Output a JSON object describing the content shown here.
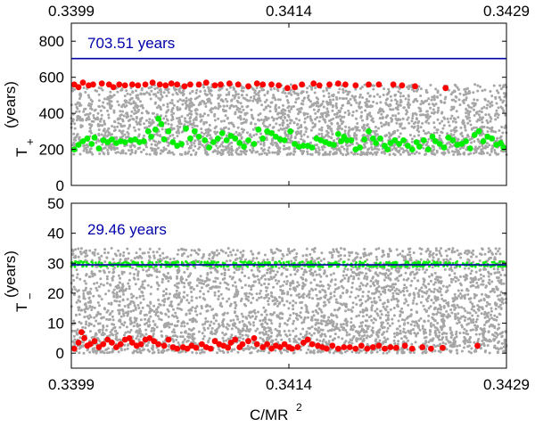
{
  "chart_data": [
    {
      "type": "scatter",
      "panel": "top",
      "title": "",
      "xlabel": "",
      "ylabel": "T",
      "ylabel_subscript": "+",
      "ylabel_unit": "(years)",
      "xlim": [
        0.3399,
        0.3429
      ],
      "ylim": [
        0,
        900
      ],
      "x_ticks_top": [
        "0.3399",
        "0.3414",
        "0.3429"
      ],
      "y_ticks": [
        0,
        200,
        400,
        600,
        800
      ],
      "reference_line": {
        "value": 703.51,
        "label": "703.51 years",
        "color": "#0000aa"
      },
      "series": [
        {
          "role": "background",
          "color": "#a6a6a6",
          "y_band": [
            170,
            560
          ]
        },
        {
          "role": "max",
          "color": "#ff0000",
          "points": [
            [
              0.33992,
              560
            ],
            [
              0.33995,
              545
            ],
            [
              0.33998,
              570
            ],
            [
              0.34002,
              555
            ],
            [
              0.34005,
              560
            ],
            [
              0.34011,
              565
            ],
            [
              0.34016,
              560
            ],
            [
              0.34019,
              545
            ],
            [
              0.34023,
              560
            ],
            [
              0.34027,
              555
            ],
            [
              0.34032,
              560
            ],
            [
              0.34036,
              555
            ],
            [
              0.34041,
              560
            ],
            [
              0.34046,
              570
            ],
            [
              0.34051,
              560
            ],
            [
              0.34055,
              555
            ],
            [
              0.34059,
              565
            ],
            [
              0.34063,
              560
            ],
            [
              0.34068,
              550
            ],
            [
              0.34072,
              560
            ],
            [
              0.34078,
              560
            ],
            [
              0.34083,
              570
            ],
            [
              0.34089,
              555
            ],
            [
              0.34093,
              560
            ],
            [
              0.34099,
              565
            ],
            [
              0.34105,
              560
            ],
            [
              0.34112,
              550
            ],
            [
              0.34118,
              565
            ],
            [
              0.34122,
              560
            ],
            [
              0.34128,
              560
            ],
            [
              0.34133,
              555
            ],
            [
              0.34139,
              540
            ],
            [
              0.34144,
              545
            ],
            [
              0.34149,
              560
            ],
            [
              0.34157,
              565
            ],
            [
              0.34161,
              555
            ],
            [
              0.34168,
              560
            ],
            [
              0.34174,
              565
            ],
            [
              0.34179,
              560
            ],
            [
              0.34186,
              555
            ],
            [
              0.34195,
              560
            ],
            [
              0.34202,
              560
            ],
            [
              0.34212,
              560
            ],
            [
              0.34218,
              555
            ],
            [
              0.34227,
              550
            ],
            [
              0.34248,
              540
            ]
          ]
        },
        {
          "role": "min",
          "color": "#00ee00",
          "points": [
            [
              0.33992,
              200
            ],
            [
              0.33995,
              225
            ],
            [
              0.33998,
              245
            ],
            [
              0.34001,
              260
            ],
            [
              0.34004,
              230
            ],
            [
              0.34006,
              265
            ],
            [
              0.34009,
              205
            ],
            [
              0.34012,
              250
            ],
            [
              0.34015,
              240
            ],
            [
              0.34018,
              255
            ],
            [
              0.34021,
              235
            ],
            [
              0.34024,
              245
            ],
            [
              0.34027,
              240
            ],
            [
              0.34031,
              250
            ],
            [
              0.34034,
              255
            ],
            [
              0.34037,
              240
            ],
            [
              0.3404,
              245
            ],
            [
              0.34043,
              300
            ],
            [
              0.34045,
              270
            ],
            [
              0.34048,
              310
            ],
            [
              0.3405,
              370
            ],
            [
              0.34052,
              340
            ],
            [
              0.34054,
              255
            ],
            [
              0.34057,
              300
            ],
            [
              0.3406,
              240
            ],
            [
              0.34063,
              220
            ],
            [
              0.34066,
              230
            ],
            [
              0.34069,
              315
            ],
            [
              0.34072,
              260
            ],
            [
              0.34075,
              300
            ],
            [
              0.34078,
              270
            ],
            [
              0.34082,
              250
            ],
            [
              0.34085,
              210
            ],
            [
              0.34088,
              240
            ],
            [
              0.34091,
              260
            ],
            [
              0.34094,
              290
            ],
            [
              0.34097,
              250
            ],
            [
              0.341,
              275
            ],
            [
              0.34103,
              260
            ],
            [
              0.34106,
              235
            ],
            [
              0.34109,
              215
            ],
            [
              0.34112,
              250
            ],
            [
              0.34116,
              230
            ],
            [
              0.34119,
              310
            ],
            [
              0.34122,
              260
            ],
            [
              0.34125,
              300
            ],
            [
              0.34128,
              290
            ],
            [
              0.34131,
              270
            ],
            [
              0.34134,
              255
            ],
            [
              0.34137,
              250
            ],
            [
              0.34141,
              300
            ],
            [
              0.34144,
              230
            ],
            [
              0.34147,
              215
            ],
            [
              0.3415,
              220
            ],
            [
              0.34153,
              220
            ],
            [
              0.34156,
              210
            ],
            [
              0.34159,
              260
            ],
            [
              0.34162,
              250
            ],
            [
              0.34165,
              240
            ],
            [
              0.34168,
              230
            ],
            [
              0.34171,
              225
            ],
            [
              0.34174,
              285
            ],
            [
              0.34176,
              245
            ],
            [
              0.34178,
              270
            ],
            [
              0.3418,
              250
            ],
            [
              0.34183,
              250
            ],
            [
              0.34186,
              200
            ],
            [
              0.34189,
              210
            ],
            [
              0.34192,
              255
            ],
            [
              0.34195,
              300
            ],
            [
              0.34198,
              260
            ],
            [
              0.342,
              235
            ],
            [
              0.34203,
              260
            ],
            [
              0.34206,
              220
            ],
            [
              0.34208,
              200
            ],
            [
              0.3421,
              235
            ],
            [
              0.34213,
              250
            ],
            [
              0.34216,
              230
            ],
            [
              0.34219,
              250
            ],
            [
              0.34222,
              220
            ],
            [
              0.34225,
              200
            ],
            [
              0.34228,
              240
            ],
            [
              0.3423,
              215
            ],
            [
              0.34233,
              250
            ],
            [
              0.34236,
              200
            ],
            [
              0.34239,
              270
            ],
            [
              0.34241,
              245
            ],
            [
              0.34244,
              230
            ],
            [
              0.34247,
              210
            ],
            [
              0.3425,
              265
            ],
            [
              0.34253,
              250
            ],
            [
              0.34256,
              225
            ],
            [
              0.34259,
              230
            ],
            [
              0.34262,
              245
            ],
            [
              0.34265,
              205
            ],
            [
              0.34268,
              280
            ],
            [
              0.34271,
              300
            ],
            [
              0.34274,
              245
            ],
            [
              0.34277,
              270
            ],
            [
              0.3428,
              260
            ],
            [
              0.34283,
              225
            ],
            [
              0.34286,
              235
            ],
            [
              0.34288,
              210
            ]
          ]
        }
      ]
    },
    {
      "type": "scatter",
      "panel": "bottom",
      "title": "",
      "xlabel": "C/MR",
      "xlabel_superscript": "2",
      "ylabel": "T",
      "ylabel_subscript": "−",
      "ylabel_unit": "(years)",
      "xlim": [
        0.3399,
        0.3429
      ],
      "ylim": [
        -5,
        50
      ],
      "x_ticks": [
        "0.3399",
        "0.3414",
        "0.3429"
      ],
      "y_ticks": [
        0,
        10,
        20,
        30,
        40,
        50
      ],
      "reference_line": {
        "value": 29.46,
        "label": "29.46 years",
        "color": "#0000aa"
      },
      "series": [
        {
          "role": "background",
          "color": "#a6a6a6",
          "y_band": [
            0,
            35
          ]
        },
        {
          "role": "max",
          "color": "#00ee00",
          "y_band": [
            28.8,
            30.6
          ]
        },
        {
          "role": "min",
          "color": "#ff0000",
          "points": [
            [
              0.33992,
              1.5
            ],
            [
              0.33995,
              3.5
            ],
            [
              0.33997,
              7.0
            ],
            [
              0.33999,
              5.0
            ],
            [
              0.34001,
              2.5
            ],
            [
              0.34003,
              3.0
            ],
            [
              0.34006,
              4.0
            ],
            [
              0.34009,
              2.0
            ],
            [
              0.34012,
              3.0
            ],
            [
              0.34015,
              4.5
            ],
            [
              0.34018,
              3.5
            ],
            [
              0.34021,
              2.0
            ],
            [
              0.34024,
              3.0
            ],
            [
              0.34027,
              4.5
            ],
            [
              0.3403,
              5.0
            ],
            [
              0.34032,
              3.5
            ],
            [
              0.34035,
              2.5
            ],
            [
              0.34038,
              3.0
            ],
            [
              0.34041,
              4.5
            ],
            [
              0.34044,
              5.0
            ],
            [
              0.34047,
              4.0
            ],
            [
              0.3405,
              3.0
            ],
            [
              0.34054,
              2.5
            ],
            [
              0.34057,
              4.5
            ],
            [
              0.3406,
              2.0
            ],
            [
              0.34063,
              1.5
            ],
            [
              0.34067,
              2.0
            ],
            [
              0.3407,
              1.5
            ],
            [
              0.34073,
              2.5
            ],
            [
              0.34076,
              1.8
            ],
            [
              0.3408,
              3.0
            ],
            [
              0.34083,
              2.0
            ],
            [
              0.34086,
              1.5
            ],
            [
              0.34089,
              4.0
            ],
            [
              0.34092,
              3.0
            ],
            [
              0.34095,
              2.5
            ],
            [
              0.34098,
              1.8
            ],
            [
              0.341,
              3.5
            ],
            [
              0.34103,
              4.5
            ],
            [
              0.34106,
              2.0
            ],
            [
              0.34108,
              3.0
            ],
            [
              0.34112,
              4.0
            ],
            [
              0.34116,
              5.0
            ],
            [
              0.34118,
              3.0
            ],
            [
              0.34122,
              2.0
            ],
            [
              0.34125,
              3.0
            ],
            [
              0.34128,
              1.5
            ],
            [
              0.34131,
              2.5
            ],
            [
              0.34134,
              2.0
            ],
            [
              0.34137,
              3.0
            ],
            [
              0.3414,
              2.0
            ],
            [
              0.34142,
              1.5
            ],
            [
              0.34146,
              2.0
            ],
            [
              0.3415,
              3.5
            ],
            [
              0.34153,
              4.5
            ],
            [
              0.34156,
              3.0
            ],
            [
              0.3416,
              2.5
            ],
            [
              0.34163,
              2.0
            ],
            [
              0.34166,
              1.5
            ],
            [
              0.3417,
              2.5
            ],
            [
              0.34174,
              1.5
            ],
            [
              0.34178,
              2.0
            ],
            [
              0.34182,
              2.0
            ],
            [
              0.34186,
              1.5
            ],
            [
              0.3419,
              2.5
            ],
            [
              0.34194,
              1.5
            ],
            [
              0.34198,
              2.0
            ],
            [
              0.34202,
              2.5
            ],
            [
              0.34206,
              1.5
            ],
            [
              0.3421,
              2.0
            ],
            [
              0.34214,
              1.8
            ],
            [
              0.3422,
              2.5
            ],
            [
              0.34225,
              1.5
            ],
            [
              0.34232,
              2.0
            ],
            [
              0.34238,
              1.5
            ],
            [
              0.34246,
              1.8
            ],
            [
              0.3427,
              2.5
            ]
          ]
        }
      ]
    }
  ]
}
